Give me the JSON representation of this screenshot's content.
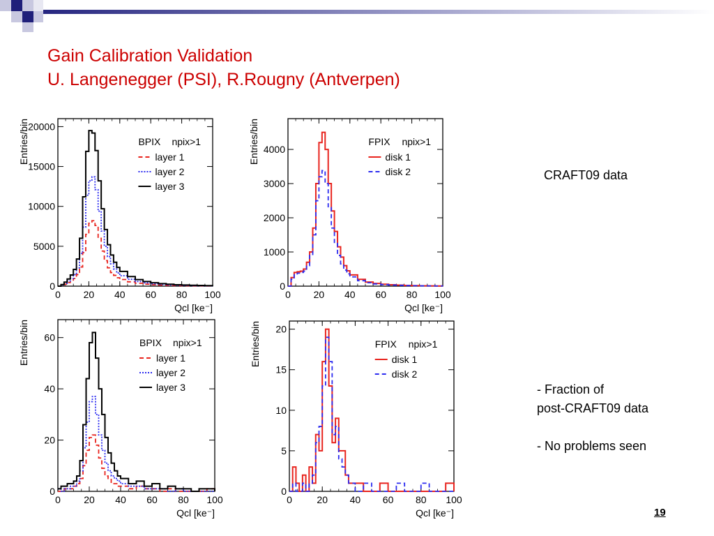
{
  "slide": {
    "title": "Gain Calibration Validation",
    "subtitle": "U. Langenegger (PSI), R.Rougny (Antverpen)",
    "note_craft": "CRAFT09 data",
    "bullets": [
      "- Fraction of",
      "post-CRAFT09 data",
      "- No problems seen"
    ],
    "page_number": "19",
    "title_color": "#cc0000"
  },
  "chart_data": [
    {
      "type": "line",
      "title": "BPIX",
      "annotation": "npix>1",
      "xlabel": "Qcl [ke⁻]",
      "ylabel": "Entries/bin",
      "xlim": [
        0,
        100
      ],
      "ylim": [
        0,
        21000
      ],
      "xticks": [
        0,
        20,
        40,
        60,
        80,
        100
      ],
      "yticks": [
        0,
        5000,
        10000,
        15000,
        20000
      ],
      "legend_placement": "top-right",
      "x": [
        0,
        2,
        4,
        6,
        8,
        10,
        12,
        14,
        16,
        18,
        20,
        22,
        24,
        26,
        28,
        30,
        32,
        34,
        36,
        38,
        40,
        45,
        50,
        55,
        60,
        65,
        70,
        75,
        80,
        85,
        90,
        95,
        100
      ],
      "series": [
        {
          "name": "layer 1",
          "color": "#e8231d",
          "style": "dashed",
          "values": [
            0,
            100,
            250,
            450,
            650,
            950,
            1450,
            2400,
            4200,
            6500,
            7900,
            8200,
            7600,
            6000,
            4400,
            3200,
            2300,
            1700,
            1350,
            1050,
            830,
            540,
            360,
            250,
            180,
            130,
            95,
            70,
            50,
            40,
            30,
            20,
            15
          ]
        },
        {
          "name": "layer 2",
          "color": "#2b2bf0",
          "style": "dotted",
          "values": [
            0,
            150,
            350,
            650,
            950,
            1450,
            2300,
            4100,
            7400,
            11400,
            13200,
            13700,
            12100,
            9400,
            6900,
            5000,
            3700,
            2800,
            2150,
            1650,
            1300,
            860,
            580,
            410,
            300,
            220,
            160,
            120,
            90,
            70,
            55,
            40,
            30
          ]
        },
        {
          "name": "layer 3",
          "color": "#000000",
          "style": "solid",
          "values": [
            0,
            200,
            500,
            900,
            1400,
            2100,
            3400,
            6000,
            11200,
            16900,
            19500,
            19200,
            17000,
            13200,
            9700,
            7100,
            5200,
            3900,
            3000,
            2350,
            1850,
            1200,
            820,
            580,
            430,
            320,
            240,
            180,
            140,
            110,
            85,
            65,
            50
          ]
        }
      ]
    },
    {
      "type": "line",
      "title": "FPIX",
      "annotation": "npix>1",
      "xlabel": "Qcl [ke⁻]",
      "ylabel": "Entries/bin",
      "xlim": [
        0,
        100
      ],
      "ylim": [
        0,
        4900
      ],
      "xticks": [
        0,
        20,
        40,
        60,
        80,
        100
      ],
      "yticks": [
        0,
        1000,
        2000,
        3000,
        4000
      ],
      "legend_placement": "top-right",
      "x": [
        0,
        2,
        4,
        6,
        8,
        10,
        12,
        14,
        16,
        18,
        20,
        22,
        24,
        26,
        28,
        30,
        32,
        34,
        36,
        38,
        40,
        45,
        50,
        55,
        60,
        65,
        70,
        75,
        80,
        85,
        90,
        95,
        100
      ],
      "series": [
        {
          "name": "disk 1",
          "color": "#e8231d",
          "style": "solid",
          "values": [
            0,
            250,
            400,
            420,
            440,
            500,
            700,
            1000,
            1700,
            3000,
            4200,
            4500,
            4000,
            3000,
            2200,
            1600,
            1150,
            850,
            600,
            450,
            330,
            200,
            120,
            80,
            55,
            40,
            30,
            20,
            15,
            10,
            8,
            5,
            4
          ]
        },
        {
          "name": "disk 2",
          "color": "#2b2bf0",
          "style": "dashed",
          "values": [
            0,
            200,
            330,
            380,
            400,
            440,
            600,
            900,
            1500,
            2500,
            3200,
            3380,
            3000,
            2300,
            1700,
            1250,
            900,
            650,
            470,
            360,
            270,
            160,
            100,
            65,
            45,
            32,
            24,
            17,
            12,
            9,
            7,
            5,
            3
          ]
        }
      ]
    },
    {
      "type": "line",
      "title": "BPIX",
      "annotation": "npix>1",
      "xlabel": "Qcl [ke⁻]",
      "ylabel": "Entries/bin",
      "xlim": [
        0,
        100
      ],
      "ylim": [
        0,
        67
      ],
      "xticks": [
        0,
        20,
        40,
        60,
        80,
        100
      ],
      "yticks": [
        0,
        20,
        40,
        60
      ],
      "legend_placement": "top-right",
      "x": [
        0,
        2,
        4,
        6,
        8,
        10,
        12,
        14,
        16,
        18,
        20,
        22,
        24,
        26,
        28,
        30,
        32,
        34,
        36,
        38,
        40,
        45,
        50,
        55,
        60,
        65,
        70,
        75,
        80,
        85,
        90,
        95,
        100
      ],
      "series": [
        {
          "name": "layer 1",
          "color": "#e8231d",
          "style": "dashed",
          "values": [
            0,
            0,
            1,
            1,
            1,
            2,
            3,
            5,
            10,
            16,
            21,
            22,
            18,
            13,
            9,
            6,
            5,
            3,
            3,
            2,
            2,
            1,
            2,
            1,
            1,
            0,
            1,
            0,
            0,
            0,
            0,
            1,
            0
          ]
        },
        {
          "name": "layer 2",
          "color": "#2b2bf0",
          "style": "dotted",
          "values": [
            1,
            0,
            1,
            1,
            2,
            2,
            4,
            8,
            17,
            27,
            35,
            37,
            30,
            22,
            16,
            11,
            8,
            6,
            5,
            4,
            3,
            2,
            2,
            1,
            1,
            1,
            0,
            1,
            0,
            0,
            0,
            0,
            0
          ]
        },
        {
          "name": "layer 3",
          "color": "#000000",
          "style": "solid",
          "values": [
            1,
            2,
            2,
            3,
            3,
            4,
            6,
            12,
            26,
            44,
            58,
            62,
            52,
            40,
            30,
            21,
            15,
            11,
            8,
            6,
            5,
            3,
            4,
            2,
            3,
            1,
            2,
            1,
            1,
            0,
            1,
            1,
            0
          ]
        }
      ]
    },
    {
      "type": "line",
      "title": "FPIX",
      "annotation": "npix>1",
      "xlabel": "Qcl [ke⁻]",
      "ylabel": "Entries/bin",
      "xlim": [
        0,
        100
      ],
      "ylim": [
        0,
        21
      ],
      "xticks": [
        0,
        20,
        40,
        60,
        80,
        100
      ],
      "yticks": [
        0,
        5,
        10,
        15,
        20
      ],
      "legend_placement": "top-right",
      "x": [
        0,
        2,
        4,
        6,
        8,
        10,
        12,
        14,
        16,
        18,
        20,
        22,
        24,
        26,
        28,
        30,
        32,
        34,
        36,
        38,
        40,
        45,
        50,
        55,
        60,
        65,
        70,
        75,
        80,
        85,
        90,
        95,
        100
      ],
      "series": [
        {
          "name": "disk 1",
          "color": "#e8231d",
          "style": "solid",
          "values": [
            0,
            3,
            1,
            0,
            2,
            0,
            3,
            1,
            7,
            5,
            16,
            20,
            13,
            6,
            9,
            5,
            5,
            2,
            1,
            1,
            1,
            0,
            0,
            1,
            0,
            0,
            0,
            0,
            0,
            0,
            0,
            1,
            0
          ]
        },
        {
          "name": "disk 2",
          "color": "#2b2bf0",
          "style": "dashed",
          "values": [
            0,
            1,
            0,
            0,
            1,
            0,
            1,
            2,
            6,
            8,
            13,
            19,
            16,
            7,
            8,
            4,
            3,
            2,
            1,
            1,
            0,
            1,
            0,
            0,
            0,
            1,
            0,
            0,
            1,
            0,
            0,
            0,
            0
          ]
        }
      ]
    }
  ]
}
